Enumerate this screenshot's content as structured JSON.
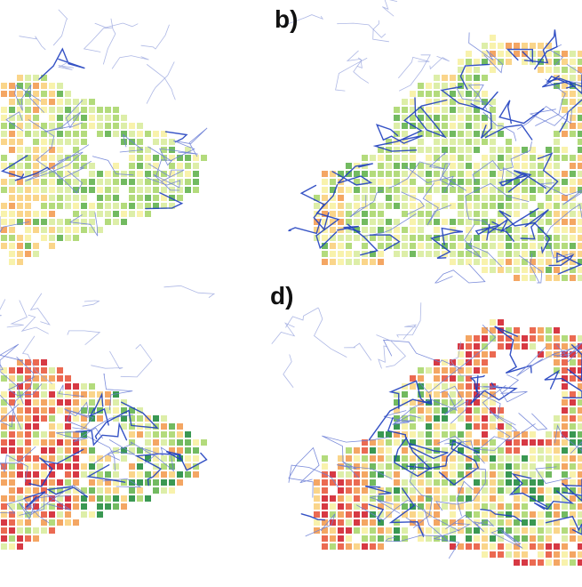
{
  "panels": [
    {
      "id": "a",
      "label": ""
    },
    {
      "id": "b",
      "label": "b)"
    },
    {
      "id": "c",
      "label": ""
    },
    {
      "id": "d",
      "label": "d)"
    }
  ],
  "colors": {
    "road_major": "#1f3fbf",
    "road_minor": "#6d7fd6",
    "road_faint": "#9aa6de",
    "scale": [
      "#1f8a3a",
      "#5fb04a",
      "#a8d66a",
      "#d8ec9c",
      "#f7f0a0",
      "#f9cf7a",
      "#f39a4d",
      "#e8553a",
      "#d21e2a"
    ]
  }
}
